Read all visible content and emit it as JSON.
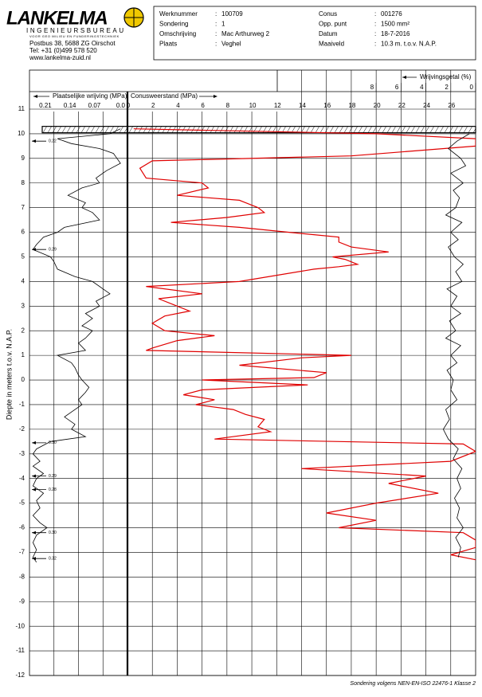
{
  "header": {
    "company": "LANKELMA",
    "subtitle": "INGENIEURSBUREAU",
    "tagline": "VOOR GEO MILIEU EN FUNDERINGSTECHNIEK",
    "address": "Postbus 38, 5688 ZG  Oirschot",
    "phone": "Tel: +31 (0)499 578 520",
    "web": "www.lankelma-zuid.nl",
    "fields": [
      {
        "label": "Werknummer",
        "value": "100709"
      },
      {
        "label": "Sondering",
        "value": "1"
      },
      {
        "label": "Omschrijving",
        "value": "Mac Arthurweg 2"
      },
      {
        "label": "Plaats",
        "value": "Veghel"
      },
      {
        "label": "Conus",
        "value": "001276"
      },
      {
        "label": "Opp. punt",
        "value": "1500 mm²"
      },
      {
        "label": "Datum",
        "value": "18-7-2016"
      },
      {
        "label": "Maaiveld",
        "value": "10.3    m.  t.o.v. N.A.P."
      }
    ],
    "separator": ":"
  },
  "chart_data": {
    "type": "cpt",
    "ylabel": "Diepte in meters t.o.v. N.A.P.",
    "ylim": [
      -12,
      11
    ],
    "yticks": [
      11,
      10,
      9,
      8,
      7,
      6,
      5,
      4,
      3,
      2,
      1,
      0,
      -1,
      -2,
      -3,
      -4,
      -5,
      -6,
      -7,
      -8,
      -9,
      -10,
      -11,
      -12
    ],
    "grid": true,
    "ground_level": 10.3,
    "axes": {
      "fs": {
        "xlim": [
          0.28,
          0
        ],
        "xticks": [
          0.21,
          0.14,
          0.07,
          {
            "value": 0,
            "label": "0.0"
          }
        ]
      },
      "qc": {
        "xlim": [
          0,
          28
        ],
        "xticks": [
          0,
          2,
          4,
          6,
          8,
          10,
          12,
          14,
          16,
          18,
          20,
          22,
          24,
          26
        ]
      },
      "rf": {
        "xlim": [
          28,
          0
        ],
        "xticks": [
          8,
          6,
          4,
          2,
          0
        ]
      }
    },
    "series": [
      {
        "name": "Conusweerstand (MPa)",
        "axis": "qc",
        "color": "#e00000",
        "depth": [
          10.2,
          10.0,
          9.8,
          9.5,
          9.1,
          8.9,
          8.6,
          8.2,
          8.0,
          7.8,
          7.5,
          7.3,
          7.0,
          6.8,
          6.6,
          6.4,
          6.2,
          6.0,
          5.8,
          5.6,
          5.4,
          5.2,
          5.0,
          4.9,
          4.7,
          4.6,
          4.5,
          4.0,
          3.8,
          3.5,
          3.3,
          3.0,
          2.8,
          2.6,
          2.3,
          2.0,
          1.8,
          1.6,
          1.3,
          1.2,
          1.0,
          0.9,
          0.6,
          0.3,
          0.1,
          0.0,
          -0.2,
          -0.4,
          -0.6,
          -0.8,
          -1.0,
          -1.2,
          -1.4,
          -1.6,
          -1.9,
          -2.1,
          -2.4,
          -2.6,
          -2.9,
          -3.3,
          -3.6,
          -3.9,
          -4.2,
          -4.6,
          -5.0,
          -5.4,
          -5.7,
          -6.0,
          -6.2,
          -6.5,
          -6.8,
          -7.1,
          -7.3
        ],
        "values": [
          0.5,
          20,
          28,
          28,
          18,
          2,
          1,
          1.5,
          6,
          6.5,
          4,
          9,
          10.5,
          11,
          8,
          3.5,
          9,
          13,
          17,
          17,
          18,
          21,
          16.5,
          17.5,
          18.5,
          17,
          15,
          9,
          1.5,
          6,
          2.5,
          4,
          5,
          3,
          2,
          3,
          7,
          4,
          2,
          1.5,
          18,
          14,
          9,
          16,
          15,
          6,
          14.5,
          6,
          4.5,
          7,
          5.5,
          8.5,
          9.5,
          11,
          10.5,
          11.5,
          7,
          27,
          28,
          26,
          14,
          24,
          21,
          25,
          20,
          16,
          20,
          17,
          27,
          28,
          28,
          26,
          28
        ]
      },
      {
        "name": "Plaatselijke wrijving (MPa)",
        "axis": "fs",
        "color": "#000000",
        "depth": [
          10.2,
          10.0,
          9.8,
          9.6,
          9.4,
          9.2,
          9.0,
          8.8,
          8.5,
          8.2,
          8.0,
          7.8,
          7.5,
          7.2,
          7.0,
          6.8,
          6.5,
          6.2,
          6.0,
          5.8,
          5.5,
          5.3,
          5.0,
          4.8,
          4.5,
          4.2,
          4.0,
          3.7,
          3.5,
          3.2,
          3.0,
          2.7,
          2.5,
          2.2,
          2.0,
          1.7,
          1.5,
          1.2,
          1.0,
          0.7,
          0.5,
          0.2,
          0.0,
          -0.3,
          -0.5,
          -0.8,
          -1.0,
          -1.3,
          -1.5,
          -1.8,
          -2.0,
          -2.3,
          -2.5,
          -2.8,
          -3.0,
          -3.3,
          -3.5,
          -3.8,
          -4.0,
          -4.3,
          -4.6,
          -4.9,
          -5.2,
          -5.5,
          -5.8,
          -6.0,
          -6.3,
          -6.6,
          -6.9,
          -7.2,
          -7.4
        ],
        "values": [
          0.02,
          0.05,
          0.2,
          0.16,
          0.08,
          0.04,
          0.03,
          0.02,
          0.06,
          0.09,
          0.08,
          0.13,
          0.17,
          0.12,
          0.13,
          0.1,
          0.08,
          0.18,
          0.2,
          0.24,
          0.26,
          0.27,
          0.22,
          0.21,
          0.2,
          0.15,
          0.1,
          0.07,
          0.05,
          0.09,
          0.08,
          0.12,
          0.1,
          0.13,
          0.1,
          0.12,
          0.14,
          0.12,
          0.2,
          0.16,
          0.15,
          0.14,
          0.13,
          0.11,
          0.12,
          0.14,
          0.13,
          0.16,
          0.18,
          0.15,
          0.16,
          0.12,
          0.22,
          0.26,
          0.27,
          0.25,
          0.27,
          0.24,
          0.26,
          0.27,
          0.24,
          0.26,
          0.25,
          0.27,
          0.25,
          0.23,
          0.26,
          0.27,
          0.26,
          0.27,
          0.26
        ]
      },
      {
        "name": "Wrijvingsgetal (%)",
        "axis": "rf",
        "color": "#000000",
        "depth": [
          10.0,
          9.7,
          9.4,
          9.0,
          8.7,
          8.4,
          8.0,
          7.7,
          7.4,
          7.0,
          6.7,
          6.4,
          6.0,
          5.7,
          5.4,
          5.0,
          4.7,
          4.4,
          4.0,
          3.7,
          3.4,
          3.0,
          2.7,
          2.4,
          2.0,
          1.7,
          1.4,
          1.0,
          0.7,
          0.4,
          0.0,
          -0.4,
          -0.8,
          -1.2,
          -1.6,
          -2.0,
          -2.4,
          -2.8,
          -3.2,
          -3.6,
          -4.0,
          -4.4,
          -4.8,
          -5.2,
          -5.6,
          -6.0,
          -6.4,
          -6.8,
          -7.2
        ],
        "values": [
          0.5,
          1.5,
          2.2,
          1.2,
          0.8,
          2.0,
          1.0,
          1.8,
          1.3,
          1.6,
          2.4,
          1.1,
          2.0,
          1.4,
          2.2,
          1.7,
          1.0,
          1.6,
          1.1,
          2.3,
          1.5,
          2.0,
          1.2,
          2.1,
          1.6,
          2.4,
          1.2,
          2.0,
          1.5,
          2.3,
          1.8,
          2.0,
          1.5,
          2.4,
          2.1,
          2.6,
          2.2,
          1.4,
          1.8,
          1.1,
          1.5,
          1.2,
          1.7,
          1.3,
          1.5,
          1.0,
          1.6,
          1.2,
          1.4
        ]
      }
    ],
    "annotations": [
      {
        "depth": 9.7,
        "label": "0.22"
      },
      {
        "depth": 5.3,
        "label": "0.29"
      },
      {
        "depth": -2.55,
        "label": "0.30"
      },
      {
        "depth": -3.9,
        "label": "0.29"
      },
      {
        "depth": -4.45,
        "label": "0.28"
      },
      {
        "depth": -6.2,
        "label": "0.30"
      },
      {
        "depth": -7.25,
        "label": "0.32"
      }
    ],
    "footer": "Sondering volgens NEN-EN-ISO 22476-1 Klasse 2"
  }
}
